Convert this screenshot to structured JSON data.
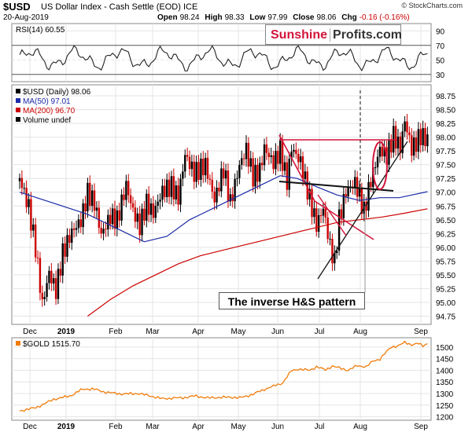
{
  "header": {
    "symbol": "$USD",
    "name": "US Dollar Index - Cash Settle (EOD)  ICE",
    "date": "20-Aug-2019",
    "open_label": "Open",
    "open": "98.24",
    "high_label": "High",
    "high": "98.33",
    "low_label": "Low",
    "low": "97.99",
    "close_label": "Close",
    "close": "98.06",
    "chg_label": "Chg",
    "chg": "-0.16 (-0.16%)",
    "credit": "© StockCharts.com"
  },
  "logo": {
    "part1": "Sunshine",
    "part2": "Profits.com"
  },
  "annotation": "The inverse H&S pattern",
  "colors": {
    "up_candle": "#000000",
    "down_candle": "#cc0000",
    "ma50": "#1a2aa8",
    "ma200": "#cc0000",
    "trendline_red": "#d4143a",
    "gold_line": "#f07c0a",
    "grid": "#e4e4e4"
  },
  "rsi_panel": {
    "legend": "RSI(14) 60.55",
    "levels": [
      90,
      70,
      50,
      30
    ],
    "tick_labels": [
      "90",
      "70",
      "50",
      "30"
    ]
  },
  "price_panel": {
    "legend": [
      {
        "text": "$USD (Daily) 98.06",
        "color": "#000000"
      },
      {
        "text": "MA(50) 97.01",
        "color": "#1a2aa8"
      },
      {
        "text": "MA(200) 96.70",
        "color": "#cc0000"
      },
      {
        "text": "Volume undef",
        "color": "#000000"
      }
    ],
    "y_ticks": [
      "98.75",
      "98.50",
      "98.25",
      "98.00",
      "97.75",
      "97.50",
      "97.25",
      "97.00",
      "96.75",
      "96.50",
      "96.25",
      "96.00",
      "95.75",
      "95.50",
      "95.25",
      "95.00",
      "94.75"
    ]
  },
  "gold_panel": {
    "legend": "$GOLD 1515.70",
    "y_ticks": [
      "1500",
      "1450",
      "1400",
      "1350",
      "1300",
      "1250",
      "1200"
    ]
  },
  "x_labels": [
    "Dec",
    "2019",
    "Feb",
    "Mar",
    "Apr",
    "May",
    "Jun",
    "Jul",
    "Aug",
    "Sep"
  ],
  "chart_data": [
    {
      "type": "line",
      "title": "RSI(14) 60.55",
      "ylim": [
        20,
        100
      ],
      "months": [
        "Dec",
        "2019",
        "Feb",
        "Mar",
        "Apr",
        "May",
        "Jun",
        "Jul",
        "Aug",
        "Sep"
      ],
      "series": [
        {
          "name": "RSI(14)",
          "last": 60.55
        }
      ]
    },
    {
      "type": "line",
      "title": "$USD (Daily) 98.06",
      "ylim": [
        94.6,
        98.95
      ],
      "months": [
        "Dec",
        "2019",
        "Feb",
        "Mar",
        "Apr",
        "May",
        "Jun",
        "Jul",
        "Aug",
        "Sep"
      ],
      "series": [
        {
          "name": "$USD (Daily)",
          "values": [
            [
              0,
              97.2
            ],
            [
              8,
              96.7
            ],
            [
              14,
              96.0
            ],
            [
              20,
              95.0
            ],
            [
              26,
              95.6
            ],
            [
              32,
              95.3
            ],
            [
              38,
              96.0
            ],
            [
              46,
              96.4
            ],
            [
              54,
              96.6
            ],
            [
              60,
              97.1
            ],
            [
              66,
              96.9
            ],
            [
              72,
              96.3
            ],
            [
              80,
              96.6
            ],
            [
              86,
              96.5
            ],
            [
              94,
              97.1
            ],
            [
              100,
              96.6
            ],
            [
              106,
              96.3
            ],
            [
              112,
              96.7
            ],
            [
              118,
              96.5
            ],
            [
              126,
              96.9
            ],
            [
              134,
              97.0
            ],
            [
              140,
              96.8
            ],
            [
              146,
              97.6
            ],
            [
              154,
              97.3
            ],
            [
              164,
              97.5
            ],
            [
              172,
              96.9
            ],
            [
              180,
              97.5
            ],
            [
              186,
              96.9
            ],
            [
              194,
              97.6
            ],
            [
              200,
              97.9
            ],
            [
              206,
              97.4
            ],
            [
              212,
              97.5
            ],
            [
              216,
              97.9
            ],
            [
              224,
              97.6
            ],
            [
              230,
              97.8
            ],
            [
              236,
              97.2
            ],
            [
              240,
              97.8
            ],
            [
              248,
              97.5
            ],
            [
              256,
              96.8
            ],
            [
              262,
              96.3
            ],
            [
              268,
              96.6
            ],
            [
              274,
              95.9
            ],
            [
              278,
              95.6
            ],
            [
              282,
              96.4
            ],
            [
              288,
              96.9
            ],
            [
              296,
              97.1
            ],
            [
              304,
              96.6
            ],
            [
              310,
              97.2
            ],
            [
              318,
              97.8
            ],
            [
              324,
              97.7
            ],
            [
              330,
              98.1
            ],
            [
              336,
              97.9
            ],
            [
              340,
              98.4
            ],
            [
              346,
              97.9
            ],
            [
              354,
              98.15
            ],
            [
              360,
              98.06
            ]
          ]
        },
        {
          "name": "MA(50)",
          "last": 97.01
        },
        {
          "name": "MA(200)",
          "last": 96.7
        }
      ]
    },
    {
      "type": "line",
      "title": "$GOLD 1515.70",
      "ylim": [
        1185,
        1540
      ],
      "months": [
        "Dec",
        "2019",
        "Feb",
        "Mar",
        "Apr",
        "May",
        "Jun",
        "Jul",
        "Aug",
        "Sep"
      ],
      "series": [
        {
          "name": "$GOLD",
          "values": [
            [
              0,
              1225
            ],
            [
              15,
              1240
            ],
            [
              30,
              1275
            ],
            [
              45,
              1290
            ],
            [
              55,
              1318
            ],
            [
              65,
              1320
            ],
            [
              75,
              1306
            ],
            [
              90,
              1298
            ],
            [
              105,
              1300
            ],
            [
              115,
              1290
            ],
            [
              125,
              1278
            ],
            [
              135,
              1280
            ],
            [
              145,
              1282
            ],
            [
              155,
              1290
            ],
            [
              165,
              1281
            ],
            [
              175,
              1283
            ],
            [
              185,
              1284
            ],
            [
              195,
              1282
            ],
            [
              205,
              1295
            ],
            [
              212,
              1310
            ],
            [
              220,
              1325
            ],
            [
              226,
              1335
            ],
            [
              232,
              1345
            ],
            [
              240,
              1398
            ],
            [
              246,
              1405
            ],
            [
              256,
              1400
            ],
            [
              262,
              1415
            ],
            [
              270,
              1402
            ],
            [
              276,
              1418
            ],
            [
              282,
              1410
            ],
            [
              290,
              1400
            ],
            [
              298,
              1420
            ],
            [
              306,
              1415
            ],
            [
              312,
              1440
            ],
            [
              318,
              1448
            ],
            [
              322,
              1470
            ],
            [
              328,
              1500
            ],
            [
              334,
              1505
            ],
            [
              340,
              1520
            ],
            [
              346,
              1510
            ],
            [
              352,
              1515
            ],
            [
              356,
              1505
            ],
            [
              360,
              1515.7
            ]
          ]
        }
      ]
    }
  ]
}
